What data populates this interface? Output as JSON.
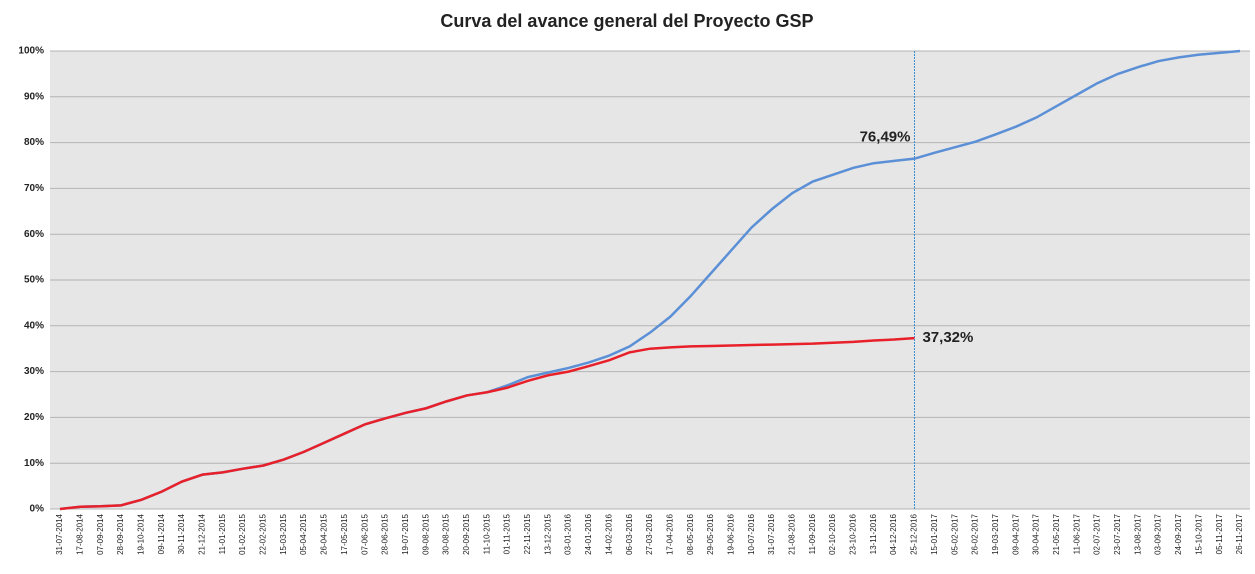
{
  "chart_data": {
    "type": "line",
    "title": "Curva del avance general del Proyecto GSP",
    "categories": [
      "31-07-2014",
      "17-08-2014",
      "07-09-2014",
      "28-09-2014",
      "19-10-2014",
      "09-11-2014",
      "30-11-2014",
      "21-12-2014",
      "11-01-2015",
      "01-02-2015",
      "22-02-2015",
      "15-03-2015",
      "05-04-2015",
      "26-04-2015",
      "17-05-2015",
      "07-06-2015",
      "28-06-2015",
      "19-07-2015",
      "09-08-2015",
      "30-08-2015",
      "20-09-2015",
      "11-10-2015",
      "01-11-2015",
      "22-11-2015",
      "13-12-2015",
      "03-01-2016",
      "24-01-2016",
      "14-02-2016",
      "06-03-2016",
      "27-03-2016",
      "17-04-2016",
      "08-05-2016",
      "29-05-2016",
      "19-06-2016",
      "10-07-2016",
      "31-07-2016",
      "21-08-2016",
      "11-09-2016",
      "02-10-2016",
      "23-10-2016",
      "13-11-2016",
      "04-12-2016",
      "25-12-2016",
      "15-01-2017",
      "05-02-2017",
      "26-02-2017",
      "19-03-2017",
      "09-04-2017",
      "30-04-2017",
      "21-05-2017",
      "11-06-2017",
      "02-07-2017",
      "23-07-2017",
      "13-08-2017",
      "03-09-2017",
      "24-09-2017",
      "15-10-2017",
      "05-11-2017",
      "26-11-2017"
    ],
    "series": [
      {
        "color": "#5b8fd6",
        "label_color": "#1f1fff",
        "values": [
          0,
          0.5,
          0.6,
          0.8,
          2,
          3.8,
          6,
          7.5,
          8,
          8.8,
          9.5,
          10.8,
          12.5,
          14.5,
          16.5,
          18.5,
          19.8,
          21,
          22,
          23.5,
          24.8,
          25.5,
          27,
          28.8,
          29.8,
          30.8,
          32,
          33.5,
          35.5,
          38.5,
          42,
          46.5,
          51.5,
          56.5,
          61.5,
          65.5,
          69,
          71.5,
          73,
          74.5,
          75.5,
          76,
          76.49,
          77.8,
          79,
          80.2,
          81.8,
          83.5,
          85.5,
          88,
          90.5,
          93,
          95,
          96.5,
          97.8,
          98.6,
          99.2,
          99.6,
          100
        ],
        "value_labels": [
          null,
          null,
          null,
          null,
          null,
          null,
          null,
          null,
          null,
          null,
          null,
          null,
          null,
          null,
          null,
          null,
          null,
          null,
          null,
          null,
          null,
          null,
          null,
          null,
          null,
          null,
          null,
          null,
          null,
          null,
          null,
          null,
          null,
          null,
          null,
          null,
          null,
          null,
          null,
          null,
          null,
          null,
          "76,49%",
          null,
          null,
          null,
          null,
          null,
          null,
          null,
          null,
          null,
          null,
          null,
          null,
          null,
          null,
          null,
          null
        ]
      },
      {
        "color": "#e8202a",
        "label_color": "#ff1414",
        "values": [
          0,
          0.5,
          0.6,
          0.8,
          2,
          3.8,
          6,
          7.5,
          8,
          8.8,
          9.5,
          10.8,
          12.5,
          14.5,
          16.5,
          18.5,
          19.8,
          21,
          22,
          23.5,
          24.8,
          25.5,
          26.5,
          28,
          29.2,
          30,
          31.2,
          32.5,
          34.2,
          35,
          35.3,
          35.5,
          35.6,
          35.7,
          35.8,
          35.9,
          36,
          36.1,
          36.3,
          36.5,
          36.8,
          37,
          37.32,
          null,
          null,
          null,
          null,
          null,
          null,
          null,
          null,
          null,
          null,
          null,
          null,
          null,
          null,
          null,
          null
        ],
        "value_labels": [
          null,
          null,
          null,
          null,
          null,
          null,
          null,
          null,
          null,
          null,
          null,
          null,
          null,
          null,
          null,
          null,
          null,
          null,
          null,
          null,
          null,
          null,
          null,
          null,
          null,
          null,
          null,
          null,
          null,
          null,
          null,
          null,
          null,
          null,
          null,
          null,
          null,
          null,
          null,
          null,
          null,
          null,
          "37,32%",
          null,
          null,
          null,
          null,
          null,
          null,
          null,
          null,
          null,
          null,
          null,
          null,
          null,
          null,
          null,
          null
        ]
      }
    ],
    "vline": "25-12-2016",
    "ylim": [
      0,
      100
    ],
    "yticks": [
      {
        "value": 0,
        "label": "0%"
      },
      {
        "value": 10,
        "label": "10%"
      },
      {
        "value": 20,
        "label": "20%"
      },
      {
        "value": 30,
        "label": "30%"
      },
      {
        "value": 40,
        "label": "40%"
      },
      {
        "value": 50,
        "label": "50%"
      },
      {
        "value": 60,
        "label": "60%"
      },
      {
        "value": 70,
        "label": "70%"
      },
      {
        "value": 80,
        "label": "80%"
      },
      {
        "value": 90,
        "label": "90%"
      },
      {
        "value": 100,
        "label": "100%"
      }
    ],
    "grid": true
  }
}
